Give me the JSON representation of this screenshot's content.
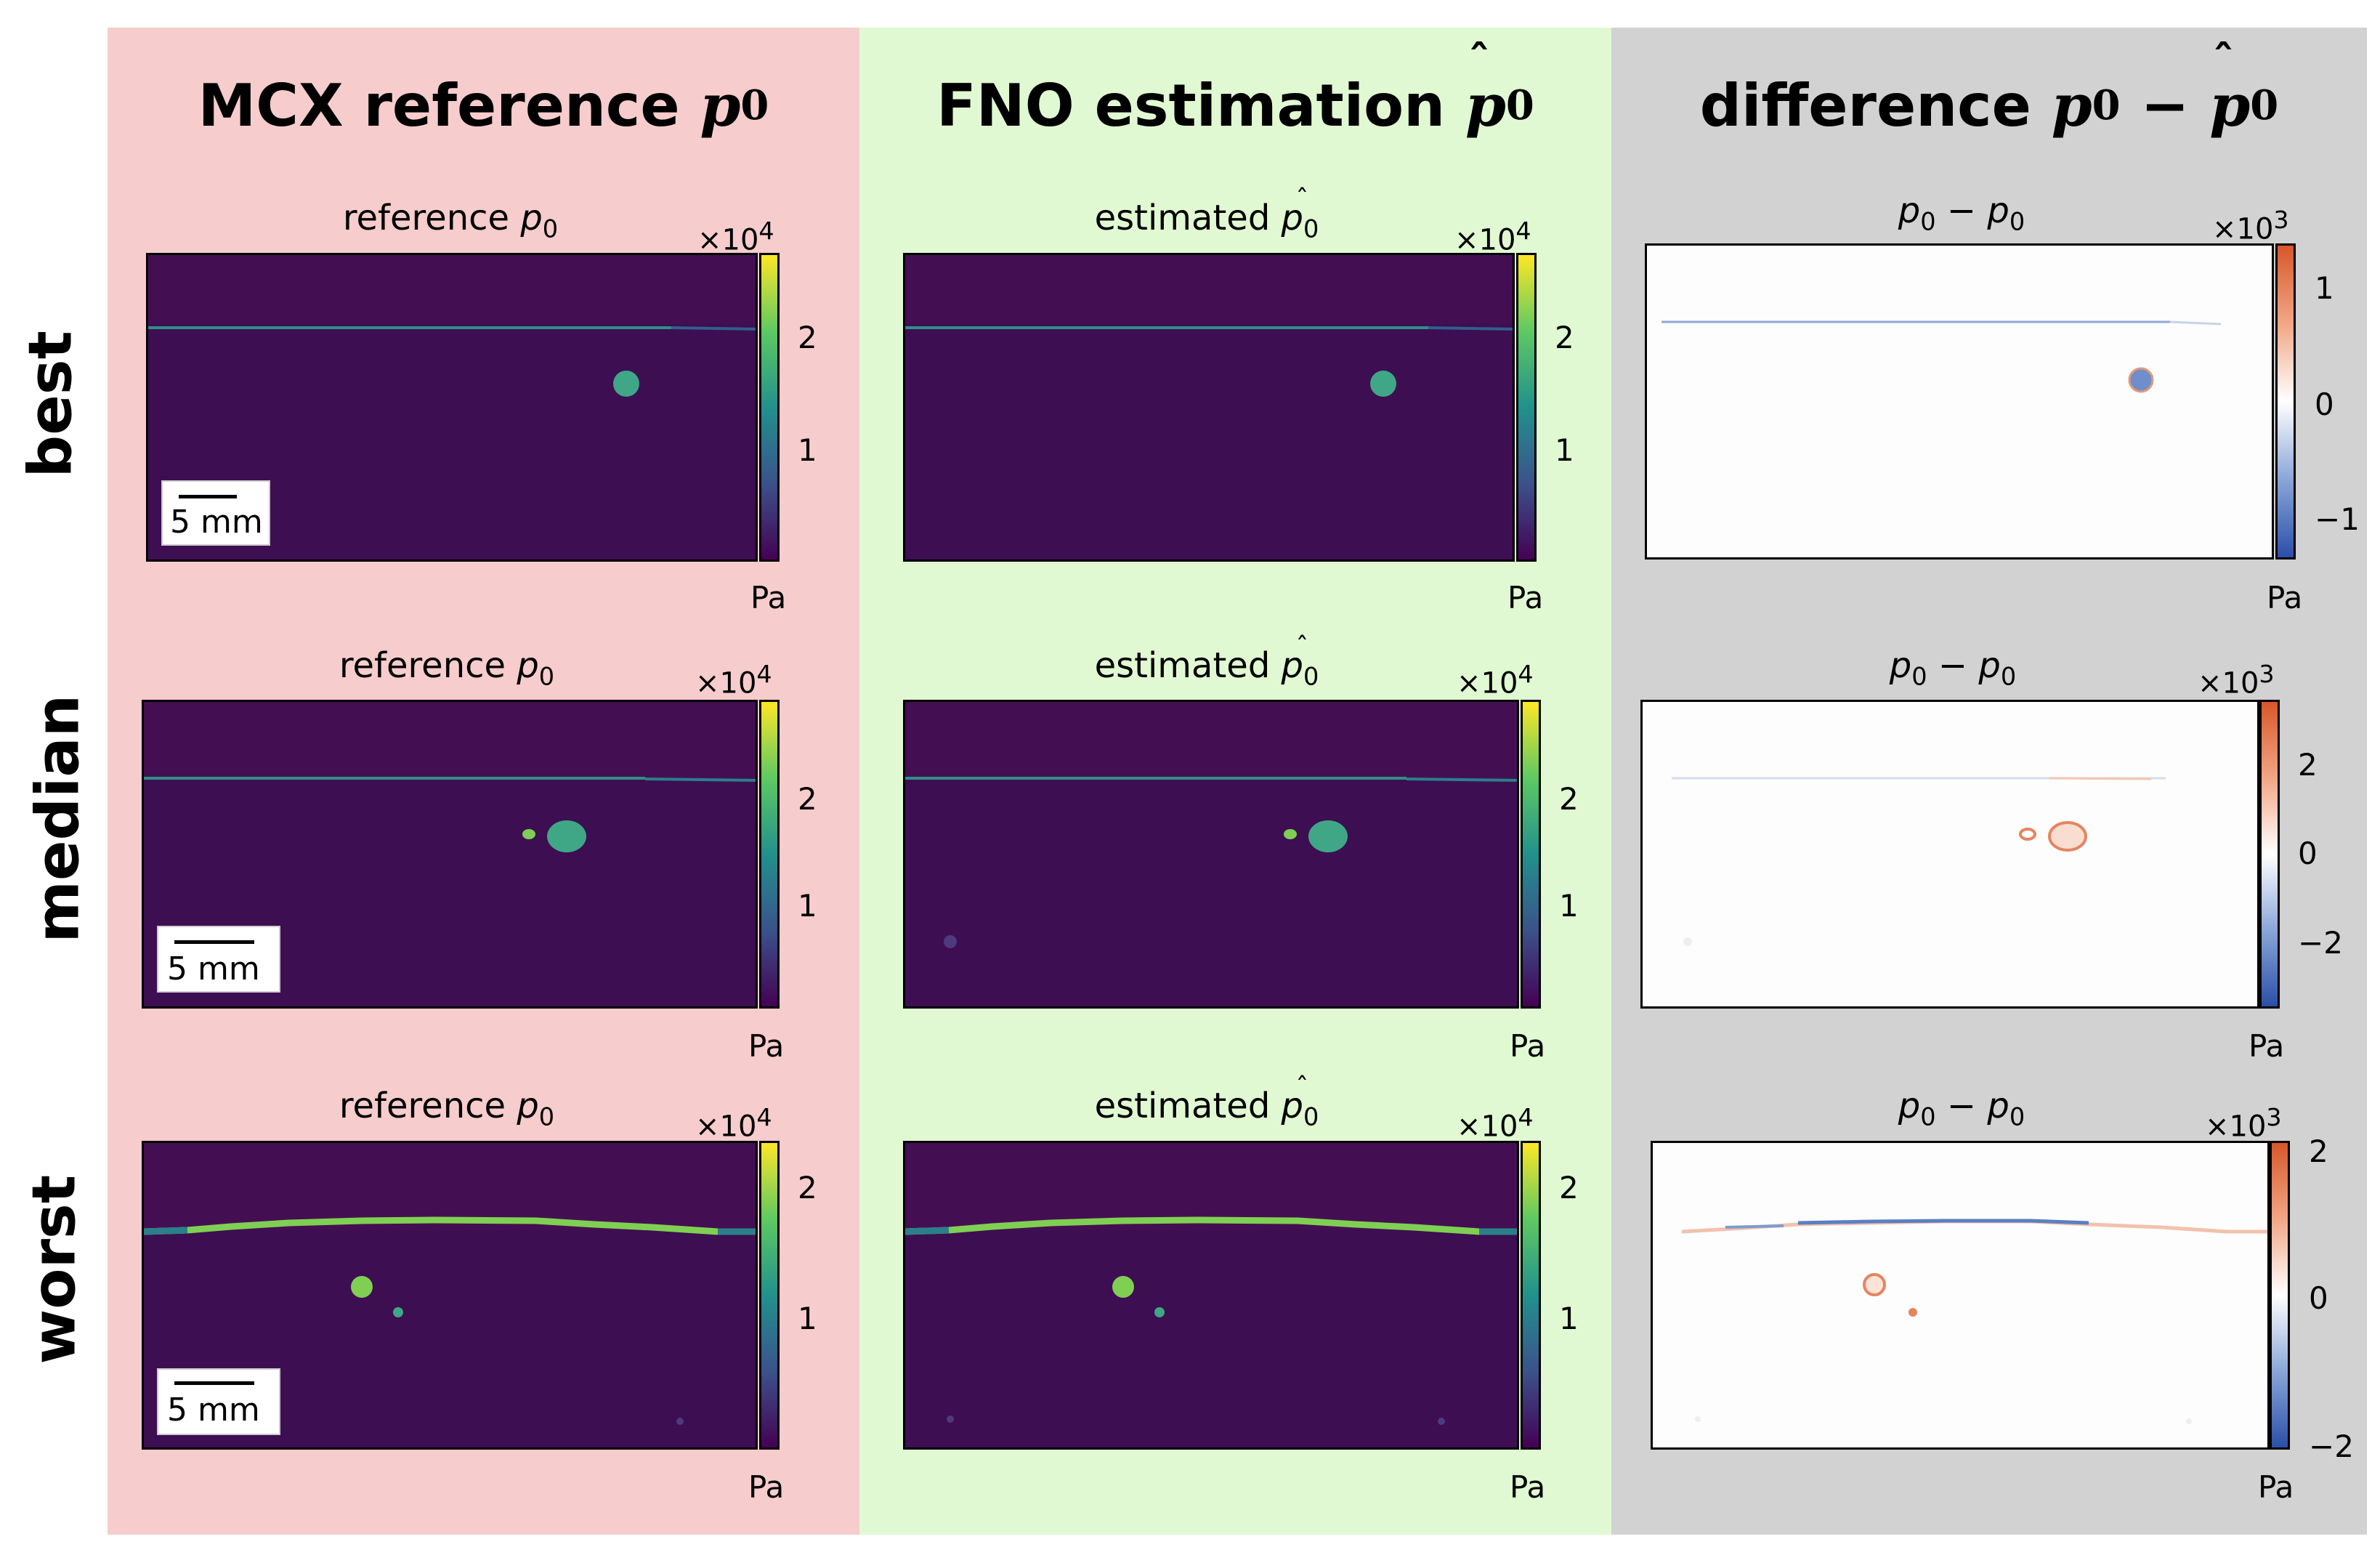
{
  "columns": {
    "reference": {
      "title": "MCX reference",
      "title_sym": "p",
      "title_sub": "0",
      "bg_color": "#f6cccc"
    },
    "estimation": {
      "title": "FNO estimation",
      "title_sym": "p",
      "title_sub": "0",
      "bg_color": "#e0f9d2"
    },
    "difference": {
      "title": "difference",
      "title_expr": "p",
      "title_sub": "0",
      "title_minus": "−",
      "bg_color": "#d2d2d2"
    }
  },
  "rows": [
    "best",
    "median",
    "worst"
  ],
  "panel_titles": {
    "reference": {
      "text": "reference",
      "sym": "p",
      "sub": "0"
    },
    "estimated": {
      "text": "estimated",
      "sym": "p",
      "sub": "0"
    },
    "difference": {
      "sym_a": "p",
      "sub_a": "0",
      "minus": "−",
      "sym_b": "p",
      "sub_b": "0"
    }
  },
  "multipliers": {
    "x1e4": "×10",
    "exp4": "4",
    "x1e3": "×10",
    "exp3": "3"
  },
  "unit": "Pa",
  "scalebar": "5 mm",
  "colorbar_ticks": {
    "best_ref": [
      "2",
      "1"
    ],
    "median_ref": [
      "2",
      "1"
    ],
    "worst_ref": [
      "2",
      "1"
    ],
    "best_diff": [
      "1",
      "0",
      "−1"
    ],
    "median_diff": [
      "2",
      "0",
      "−2"
    ],
    "worst_diff": [
      "2",
      "0",
      "−2"
    ]
  },
  "colors": {
    "viridis_bg": "#440f52",
    "line_color": "#2f8f8a",
    "blob": "#3fa786",
    "diff_neg": "#3166be",
    "diff_pos": "#e06a3a"
  }
}
